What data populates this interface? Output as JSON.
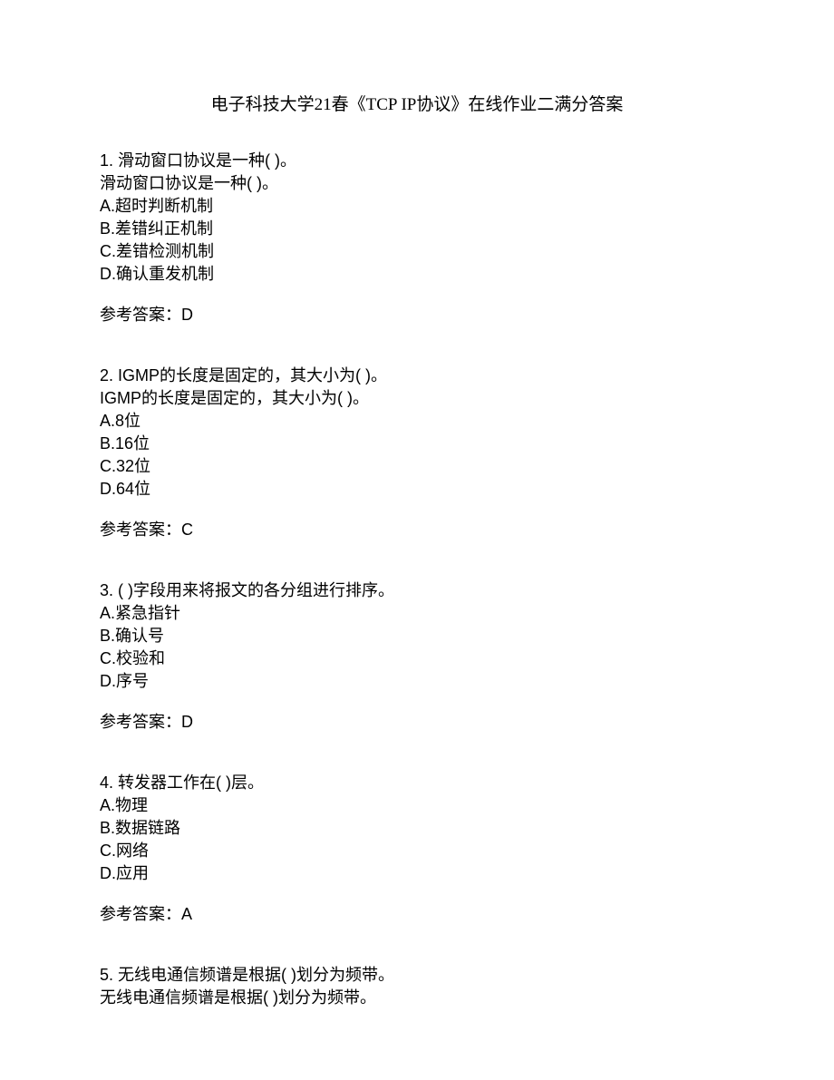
{
  "title": "电子科技大学21春《TCP IP协议》在线作业二满分答案",
  "questions": [
    {
      "number": "1. ",
      "text1": "滑动窗口协议是一种(  )。",
      "text2": "滑动窗口协议是一种(  )。",
      "options": [
        "A.超时判断机制",
        "B.差错纠正机制",
        "C.差错检测机制",
        "D.确认重发机制"
      ],
      "answer": "参考答案：D"
    },
    {
      "number": "2. ",
      "text1": "IGMP的长度是固定的，其大小为(  )。",
      "text2": "IGMP的长度是固定的，其大小为(  )。",
      "options": [
        "A.8位",
        "B.16位",
        "C.32位",
        "D.64位"
      ],
      "answer": "参考答案：C"
    },
    {
      "number": "3. ",
      "text1": "(  )字段用来将报文的各分组进行排序。",
      "text2": "",
      "options": [
        "A.紧急指针",
        "B.确认号",
        "C.校验和",
        "D.序号"
      ],
      "answer": "参考答案：D"
    },
    {
      "number": "4. ",
      "text1": "转发器工作在(  )层。",
      "text2": "",
      "options": [
        "A.物理",
        "B.数据链路",
        "C.网络",
        "D.应用"
      ],
      "answer": "参考答案：A"
    },
    {
      "number": "5. ",
      "text1": "无线电通信频谱是根据(  )划分为频带。",
      "text2": "无线电通信频谱是根据(  )划分为频带。",
      "options": [],
      "answer": ""
    }
  ]
}
